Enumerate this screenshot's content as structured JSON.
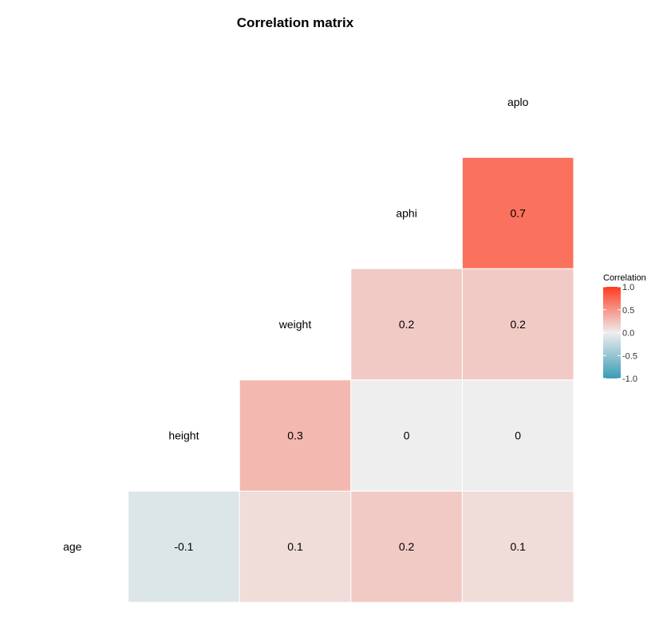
{
  "chart_data": {
    "type": "heatmap",
    "title": "Correlation matrix",
    "variables": [
      "age",
      "height",
      "weight",
      "aphi",
      "aplo"
    ],
    "cells": [
      {
        "row": "age",
        "col": "height",
        "value": -0.1,
        "label": "-0.1"
      },
      {
        "row": "age",
        "col": "weight",
        "value": 0.1,
        "label": "0.1"
      },
      {
        "row": "age",
        "col": "aphi",
        "value": 0.2,
        "label": "0.2"
      },
      {
        "row": "age",
        "col": "aplo",
        "value": 0.1,
        "label": "0.1"
      },
      {
        "row": "height",
        "col": "weight",
        "value": 0.3,
        "label": "0.3"
      },
      {
        "row": "height",
        "col": "aphi",
        "value": 0.0,
        "label": "0"
      },
      {
        "row": "height",
        "col": "aplo",
        "value": 0.0,
        "label": "0"
      },
      {
        "row": "weight",
        "col": "aphi",
        "value": 0.2,
        "label": "0.2"
      },
      {
        "row": "weight",
        "col": "aplo",
        "value": 0.2,
        "label": "0.2"
      },
      {
        "row": "aphi",
        "col": "aplo",
        "value": 0.7,
        "label": "0.7"
      }
    ],
    "legend": {
      "title": "Correlation",
      "placement": "right",
      "range": [
        -1.0,
        1.0
      ],
      "ticks": [
        {
          "value": 1.0,
          "label": "1.0"
        },
        {
          "value": 0.5,
          "label": "0.5"
        },
        {
          "value": 0.0,
          "label": "0.0"
        },
        {
          "value": -0.5,
          "label": "-0.5"
        },
        {
          "value": -1.0,
          "label": "-1.0"
        }
      ]
    },
    "colors": {
      "low": "#3a9bb5",
      "mid": "#eeeeee",
      "high": "#ff3b1f",
      "tile_border": "#ffffff",
      "text": "#000000"
    },
    "grid": false
  }
}
